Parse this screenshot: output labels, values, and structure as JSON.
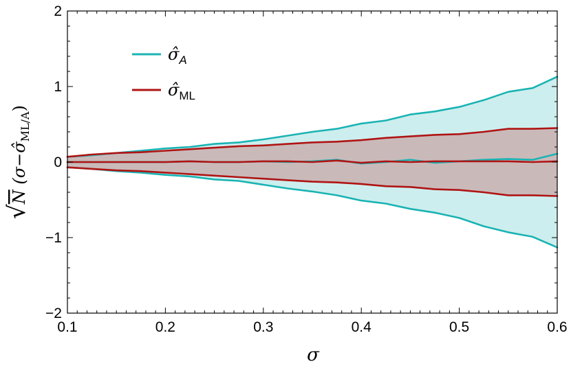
{
  "chart_data": {
    "type": "line",
    "xlabel": "σ",
    "ylabel": {
      "root": "√",
      "n": "N",
      "open": " (σ−",
      "hat": "σ̂",
      "sub": "ML/A",
      "close": ")"
    },
    "xlim": [
      0.1,
      0.6
    ],
    "ylim": [
      -2,
      2
    ],
    "xticks": [
      0.1,
      0.2,
      0.3,
      0.4,
      0.5,
      0.6
    ],
    "xtick_labels": [
      "0.1",
      "0.2",
      "0.3",
      "0.4",
      "0.5",
      "0.6"
    ],
    "yticks": [
      -2,
      -1,
      0,
      1,
      2
    ],
    "ytick_labels": [
      "−2",
      "−1",
      "0",
      "1",
      "2"
    ],
    "grid": false,
    "legend_position": "top-left",
    "x": [
      0.1,
      0.125,
      0.15,
      0.175,
      0.2,
      0.225,
      0.25,
      0.275,
      0.3,
      0.325,
      0.35,
      0.375,
      0.4,
      0.425,
      0.45,
      0.475,
      0.5,
      0.525,
      0.55,
      0.575,
      0.6
    ],
    "series": [
      {
        "name": "σ̂_A",
        "legend_main": "σ̂",
        "legend_sub": "A",
        "legend_sub_italic": true,
        "color": "#1ab3b3",
        "fill": "#cdeeee",
        "upper": [
          0.07,
          0.09,
          0.12,
          0.15,
          0.18,
          0.2,
          0.24,
          0.26,
          0.3,
          0.35,
          0.4,
          0.44,
          0.51,
          0.55,
          0.63,
          0.67,
          0.73,
          0.82,
          0.93,
          0.98,
          1.13
        ],
        "median": [
          0.0,
          0.0,
          0.0,
          0.0,
          0.0,
          0.01,
          0.0,
          0.0,
          0.01,
          0.0,
          0.01,
          0.03,
          -0.02,
          0.0,
          0.03,
          -0.01,
          0.01,
          0.03,
          0.04,
          0.03,
          0.11
        ],
        "lower": [
          -0.07,
          -0.09,
          -0.12,
          -0.14,
          -0.17,
          -0.19,
          -0.23,
          -0.25,
          -0.3,
          -0.35,
          -0.39,
          -0.44,
          -0.51,
          -0.55,
          -0.62,
          -0.67,
          -0.74,
          -0.85,
          -0.93,
          -0.99,
          -1.13
        ]
      },
      {
        "name": "σ̂_ML",
        "legend_main": "σ̂",
        "legend_sub": "ML",
        "legend_sub_italic": false,
        "color": "#b01414",
        "fill": "#cab9b9",
        "upper": [
          0.07,
          0.1,
          0.12,
          0.13,
          0.15,
          0.17,
          0.19,
          0.21,
          0.22,
          0.24,
          0.26,
          0.27,
          0.29,
          0.32,
          0.34,
          0.36,
          0.37,
          0.4,
          0.44,
          0.44,
          0.45
        ],
        "median": [
          0.0,
          0.0,
          0.0,
          0.0,
          0.0,
          0.01,
          0.0,
          0.0,
          0.01,
          0.01,
          0.0,
          0.02,
          -0.01,
          0.01,
          0.0,
          0.01,
          0.01,
          0.01,
          0.01,
          0.0,
          0.01
        ],
        "lower": [
          -0.07,
          -0.09,
          -0.11,
          -0.12,
          -0.14,
          -0.16,
          -0.18,
          -0.2,
          -0.22,
          -0.24,
          -0.26,
          -0.27,
          -0.29,
          -0.32,
          -0.33,
          -0.36,
          -0.37,
          -0.4,
          -0.44,
          -0.44,
          -0.45
        ]
      }
    ]
  }
}
